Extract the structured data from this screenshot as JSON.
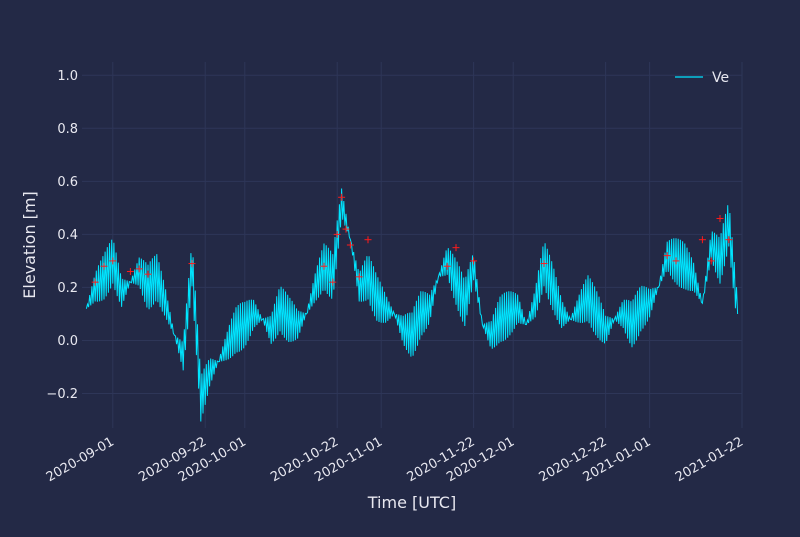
{
  "chart_data": {
    "type": "line",
    "title": "",
    "xlabel": "Time [UTC]",
    "ylabel": "Elevation [m]",
    "xlim": [
      "2020-08-25",
      "2021-01-22"
    ],
    "ylim": [
      -0.33,
      1.05
    ],
    "grid": true,
    "legend_position": "top-right",
    "x_ticks": [
      "2020-09-01",
      "2020-09-22",
      "2020-10-01",
      "2020-10-22",
      "2020-11-01",
      "2020-11-22",
      "2020-12-01",
      "2020-12-22",
      "2021-01-01",
      "2021-01-22"
    ],
    "y_ticks": [
      "−0.2",
      "0.0",
      "0.2",
      "0.4",
      "0.6",
      "0.8",
      "1.0"
    ],
    "y_tick_values": [
      -0.2,
      0.0,
      0.2,
      0.4,
      0.6,
      0.8,
      1.0
    ],
    "series": [
      {
        "name": "Ve",
        "color": "#00e5ff",
        "x": [
          "2020-08-26",
          "2020-08-28",
          "2020-08-30",
          "2020-09-01",
          "2020-09-03",
          "2020-09-05",
          "2020-09-07",
          "2020-09-09",
          "2020-09-11",
          "2020-09-13",
          "2020-09-15",
          "2020-09-17",
          "2020-09-19",
          "2020-09-21",
          "2020-09-23",
          "2020-09-25",
          "2020-09-27",
          "2020-09-29",
          "2020-10-01",
          "2020-10-03",
          "2020-10-05",
          "2020-10-07",
          "2020-10-09",
          "2020-10-11",
          "2020-10-13",
          "2020-10-15",
          "2020-10-17",
          "2020-10-19",
          "2020-10-21",
          "2020-10-23",
          "2020-10-25",
          "2020-10-27",
          "2020-10-29",
          "2020-10-31",
          "2020-11-02",
          "2020-11-04",
          "2020-11-06",
          "2020-11-08",
          "2020-11-10",
          "2020-11-12",
          "2020-11-14",
          "2020-11-16",
          "2020-11-18",
          "2020-11-20",
          "2020-11-22",
          "2020-11-24",
          "2020-11-26",
          "2020-11-28",
          "2020-11-30",
          "2020-12-02",
          "2020-12-04",
          "2020-12-06",
          "2020-12-08",
          "2020-12-10",
          "2020-12-12",
          "2020-12-14",
          "2020-12-16",
          "2020-12-18",
          "2020-12-20",
          "2020-12-22",
          "2020-12-24",
          "2020-12-26",
          "2020-12-28",
          "2020-12-30",
          "2021-01-01",
          "2021-01-03",
          "2021-01-05",
          "2021-01-07",
          "2021-01-09",
          "2021-01-11",
          "2021-01-13",
          "2021-01-15",
          "2021-01-17",
          "2021-01-19",
          "2021-01-21"
        ],
        "values": [
          0.12,
          0.2,
          0.24,
          0.3,
          0.18,
          0.22,
          0.26,
          0.2,
          0.24,
          0.14,
          0.02,
          -0.06,
          0.29,
          -0.22,
          -0.12,
          -0.08,
          -0.02,
          0.04,
          0.06,
          0.1,
          0.08,
          0.04,
          0.12,
          0.08,
          0.06,
          0.1,
          0.2,
          0.28,
          0.24,
          0.52,
          0.38,
          0.2,
          0.24,
          0.16,
          0.12,
          0.1,
          0.04,
          0.02,
          0.1,
          0.12,
          0.24,
          0.3,
          0.22,
          0.14,
          0.28,
          0.06,
          0.02,
          0.08,
          0.1,
          0.12,
          0.06,
          0.14,
          0.29,
          0.2,
          0.1,
          0.08,
          0.12,
          0.16,
          0.1,
          0.04,
          0.08,
          0.1,
          0.06,
          0.12,
          0.14,
          0.2,
          0.32,
          0.3,
          0.28,
          0.24,
          0.14,
          0.36,
          0.3,
          0.44,
          0.1
        ]
      }
    ],
    "markers": {
      "symbol": "+",
      "color": "#ff1a1a",
      "x": [
        "2020-08-28",
        "2020-08-30",
        "2020-09-01",
        "2020-09-05",
        "2020-09-07",
        "2020-09-09",
        "2020-09-19",
        "2020-10-19",
        "2020-10-21",
        "2020-10-22",
        "2020-10-23",
        "2020-10-24",
        "2020-10-25",
        "2020-10-27",
        "2020-10-29",
        "2020-11-16",
        "2020-11-18",
        "2020-11-22",
        "2020-12-08",
        "2021-01-05",
        "2021-01-07",
        "2021-01-13",
        "2021-01-15",
        "2021-01-17",
        "2021-01-19"
      ],
      "values": [
        0.22,
        0.28,
        0.3,
        0.26,
        0.27,
        0.25,
        0.29,
        0.28,
        0.22,
        0.4,
        0.54,
        0.42,
        0.36,
        0.24,
        0.38,
        0.28,
        0.35,
        0.3,
        0.29,
        0.32,
        0.3,
        0.38,
        0.3,
        0.46,
        0.38
      ]
    }
  }
}
